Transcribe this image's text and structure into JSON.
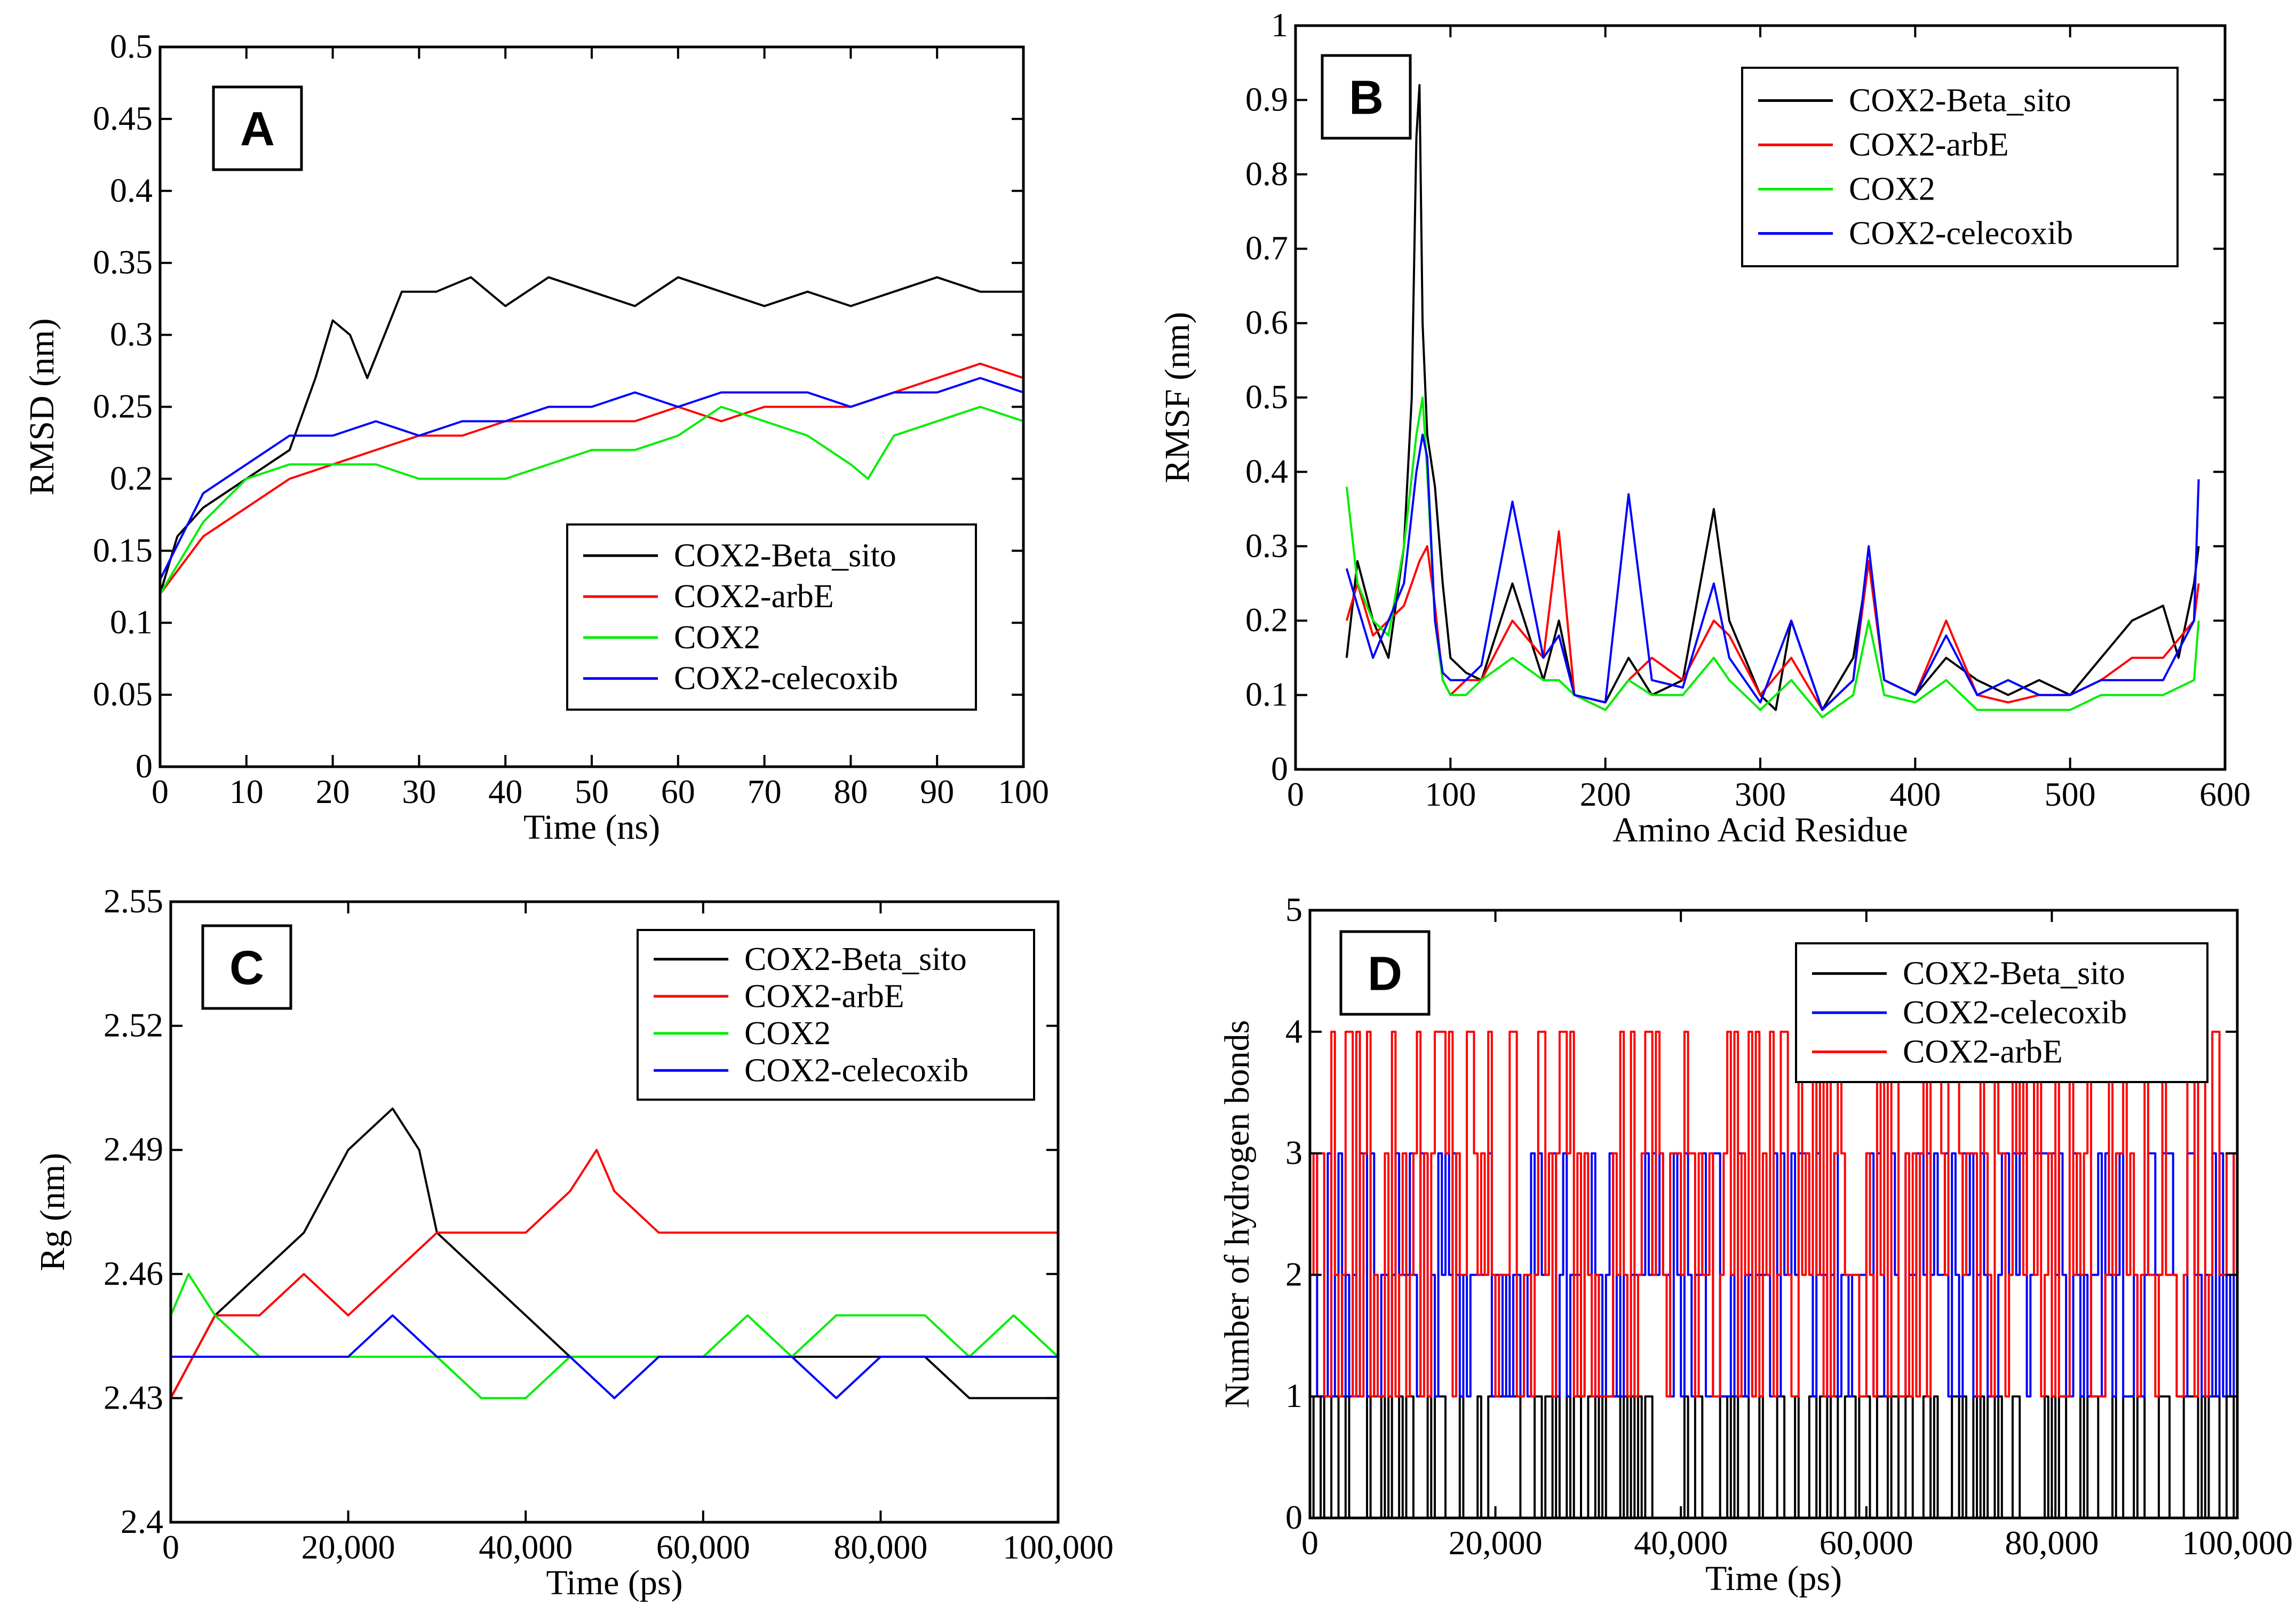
{
  "chart_data": [
    {
      "type": "line",
      "panel_letter": "A",
      "xlabel": "Time (ns)",
      "ylabel": "RMSD (nm)",
      "xlim": [
        0,
        100
      ],
      "ylim": [
        0,
        0.5
      ],
      "x_ticks": [
        "0",
        "10",
        "20",
        "30",
        "40",
        "50",
        "60",
        "70",
        "80",
        "90",
        "100"
      ],
      "y_ticks": [
        "0",
        "0.05",
        "0.1",
        "0.15",
        "0.2",
        "0.25",
        "0.3",
        "0.35",
        "0.4",
        "0.45",
        "0.5"
      ],
      "legend_position": "lower-right",
      "series": [
        {
          "name": "COX2-Beta_sito",
          "color": "#000000",
          "x": [
            0,
            2,
            5,
            10,
            15,
            18,
            20,
            22,
            24,
            26,
            28,
            32,
            36,
            40,
            45,
            50,
            55,
            60,
            65,
            70,
            75,
            80,
            85,
            90,
            95,
            100
          ],
          "values": [
            0.12,
            0.16,
            0.18,
            0.2,
            0.22,
            0.27,
            0.31,
            0.3,
            0.27,
            0.3,
            0.33,
            0.33,
            0.34,
            0.32,
            0.34,
            0.33,
            0.32,
            0.34,
            0.33,
            0.32,
            0.33,
            0.32,
            0.33,
            0.34,
            0.33,
            0.33
          ]
        },
        {
          "name": "COX2-arbE",
          "color": "#ff0000",
          "x": [
            0,
            5,
            10,
            15,
            20,
            25,
            30,
            35,
            40,
            45,
            50,
            55,
            60,
            65,
            70,
            75,
            80,
            85,
            90,
            95,
            100
          ],
          "values": [
            0.12,
            0.16,
            0.18,
            0.2,
            0.21,
            0.22,
            0.23,
            0.23,
            0.24,
            0.24,
            0.24,
            0.24,
            0.25,
            0.24,
            0.25,
            0.25,
            0.25,
            0.26,
            0.27,
            0.28,
            0.27
          ]
        },
        {
          "name": "COX2",
          "color": "#00ee00",
          "x": [
            0,
            5,
            10,
            15,
            20,
            25,
            30,
            35,
            40,
            45,
            50,
            55,
            60,
            65,
            70,
            75,
            80,
            82,
            85,
            90,
            95,
            100
          ],
          "values": [
            0.12,
            0.17,
            0.2,
            0.21,
            0.21,
            0.21,
            0.2,
            0.2,
            0.2,
            0.21,
            0.22,
            0.22,
            0.23,
            0.25,
            0.24,
            0.23,
            0.21,
            0.2,
            0.23,
            0.24,
            0.25,
            0.24
          ]
        },
        {
          "name": "COX2-celecoxib",
          "color": "#0000ff",
          "x": [
            0,
            5,
            10,
            15,
            20,
            25,
            30,
            35,
            40,
            45,
            50,
            55,
            60,
            65,
            70,
            75,
            80,
            85,
            90,
            95,
            100
          ],
          "values": [
            0.13,
            0.19,
            0.21,
            0.23,
            0.23,
            0.24,
            0.23,
            0.24,
            0.24,
            0.25,
            0.25,
            0.26,
            0.25,
            0.26,
            0.26,
            0.26,
            0.25,
            0.26,
            0.26,
            0.27,
            0.26
          ]
        }
      ]
    },
    {
      "type": "line",
      "panel_letter": "B",
      "xlabel": "Amino Acid Residue",
      "ylabel": "RMSF (nm)",
      "xlim": [
        0,
        600
      ],
      "ylim": [
        0,
        1
      ],
      "x_ticks": [
        "0",
        "100",
        "200",
        "300",
        "400",
        "500",
        "600"
      ],
      "y_ticks": [
        "0",
        "0.1",
        "0.2",
        "0.3",
        "0.4",
        "0.5",
        "0.6",
        "0.7",
        "0.8",
        "0.9",
        "1"
      ],
      "legend_position": "top-right",
      "series": [
        {
          "name": "COX2-Beta_sito",
          "color": "#000000",
          "x": [
            33,
            40,
            50,
            60,
            70,
            75,
            78,
            80,
            82,
            85,
            90,
            95,
            100,
            110,
            120,
            140,
            160,
            170,
            180,
            200,
            215,
            230,
            250,
            270,
            280,
            300,
            310,
            320,
            340,
            360,
            370,
            380,
            400,
            420,
            440,
            460,
            480,
            500,
            520,
            540,
            560,
            570,
            580,
            583
          ],
          "values": [
            0.15,
            0.28,
            0.2,
            0.15,
            0.3,
            0.5,
            0.85,
            0.92,
            0.6,
            0.45,
            0.38,
            0.25,
            0.15,
            0.13,
            0.12,
            0.25,
            0.12,
            0.2,
            0.1,
            0.09,
            0.15,
            0.1,
            0.12,
            0.35,
            0.2,
            0.1,
            0.08,
            0.2,
            0.08,
            0.15,
            0.28,
            0.12,
            0.1,
            0.15,
            0.12,
            0.1,
            0.12,
            0.1,
            0.15,
            0.2,
            0.22,
            0.15,
            0.25,
            0.3
          ]
        },
        {
          "name": "COX2-arbE",
          "color": "#ff0000",
          "x": [
            33,
            40,
            50,
            60,
            70,
            80,
            85,
            90,
            95,
            100,
            110,
            120,
            140,
            160,
            170,
            180,
            200,
            215,
            230,
            250,
            270,
            280,
            300,
            320,
            340,
            360,
            370,
            380,
            400,
            420,
            440,
            460,
            480,
            500,
            520,
            540,
            560,
            580,
            583
          ],
          "values": [
            0.2,
            0.25,
            0.18,
            0.2,
            0.22,
            0.28,
            0.3,
            0.22,
            0.12,
            0.1,
            0.12,
            0.12,
            0.2,
            0.15,
            0.32,
            0.1,
            0.08,
            0.12,
            0.15,
            0.12,
            0.2,
            0.18,
            0.1,
            0.15,
            0.08,
            0.12,
            0.28,
            0.12,
            0.1,
            0.2,
            0.1,
            0.09,
            0.1,
            0.1,
            0.12,
            0.15,
            0.15,
            0.2,
            0.25
          ]
        },
        {
          "name": "COX2",
          "color": "#00ee00",
          "x": [
            33,
            40,
            50,
            60,
            70,
            78,
            82,
            85,
            90,
            95,
            100,
            110,
            120,
            140,
            160,
            170,
            180,
            200,
            215,
            230,
            250,
            270,
            280,
            300,
            320,
            340,
            360,
            370,
            380,
            400,
            420,
            440,
            460,
            480,
            500,
            520,
            540,
            560,
            580,
            583
          ],
          "values": [
            0.38,
            0.25,
            0.2,
            0.18,
            0.3,
            0.45,
            0.5,
            0.4,
            0.2,
            0.12,
            0.1,
            0.1,
            0.12,
            0.15,
            0.12,
            0.12,
            0.1,
            0.08,
            0.12,
            0.1,
            0.1,
            0.15,
            0.12,
            0.08,
            0.12,
            0.07,
            0.1,
            0.2,
            0.1,
            0.09,
            0.12,
            0.08,
            0.08,
            0.08,
            0.08,
            0.1,
            0.1,
            0.1,
            0.12,
            0.2
          ]
        },
        {
          "name": "COX2-celecoxib",
          "color": "#0000ff",
          "x": [
            33,
            40,
            50,
            60,
            70,
            78,
            82,
            85,
            90,
            95,
            100,
            110,
            120,
            140,
            160,
            170,
            180,
            200,
            215,
            230,
            250,
            270,
            280,
            300,
            320,
            340,
            360,
            370,
            380,
            400,
            420,
            440,
            460,
            480,
            500,
            520,
            540,
            560,
            580,
            583
          ],
          "values": [
            0.27,
            0.22,
            0.15,
            0.2,
            0.25,
            0.4,
            0.45,
            0.42,
            0.2,
            0.13,
            0.12,
            0.12,
            0.14,
            0.36,
            0.15,
            0.18,
            0.1,
            0.09,
            0.37,
            0.12,
            0.11,
            0.25,
            0.15,
            0.09,
            0.2,
            0.08,
            0.12,
            0.3,
            0.12,
            0.1,
            0.18,
            0.1,
            0.12,
            0.1,
            0.1,
            0.12,
            0.12,
            0.12,
            0.2,
            0.39
          ]
        }
      ]
    },
    {
      "type": "line",
      "panel_letter": "C",
      "xlabel": "Time (ps)",
      "ylabel": "Rg (nm)",
      "xlim": [
        0,
        100000
      ],
      "ylim": [
        2.4,
        2.55
      ],
      "x_ticks": [
        "0",
        "20,000",
        "40,000",
        "60,000",
        "80,000",
        "100,000"
      ],
      "y_ticks": [
        "2.4",
        "2.43",
        "2.46",
        "2.49",
        "2.52",
        "2.55"
      ],
      "legend_position": "top-right",
      "series": [
        {
          "name": "COX2-Beta_sito",
          "color": "#000000",
          "x": [
            0,
            5000,
            10000,
            15000,
            20000,
            25000,
            28000,
            30000,
            35000,
            40000,
            45000,
            50000,
            55000,
            60000,
            65000,
            70000,
            75000,
            80000,
            85000,
            90000,
            95000,
            100000
          ],
          "values": [
            2.43,
            2.45,
            2.46,
            2.47,
            2.49,
            2.5,
            2.49,
            2.47,
            2.46,
            2.45,
            2.44,
            2.44,
            2.44,
            2.44,
            2.44,
            2.44,
            2.44,
            2.44,
            2.44,
            2.43,
            2.43,
            2.43
          ]
        },
        {
          "name": "COX2-arbE",
          "color": "#ff0000",
          "x": [
            0,
            5000,
            10000,
            15000,
            20000,
            25000,
            30000,
            35000,
            40000,
            45000,
            48000,
            50000,
            55000,
            60000,
            65000,
            70000,
            75000,
            80000,
            85000,
            90000,
            95000,
            100000
          ],
          "values": [
            2.43,
            2.45,
            2.45,
            2.46,
            2.45,
            2.46,
            2.47,
            2.47,
            2.47,
            2.48,
            2.49,
            2.48,
            2.47,
            2.47,
            2.47,
            2.47,
            2.47,
            2.47,
            2.47,
            2.47,
            2.47,
            2.47
          ]
        },
        {
          "name": "COX2",
          "color": "#00ee00",
          "x": [
            0,
            2000,
            5000,
            10000,
            15000,
            20000,
            25000,
            30000,
            35000,
            40000,
            45000,
            50000,
            55000,
            60000,
            65000,
            70000,
            75000,
            80000,
            85000,
            90000,
            95000,
            100000
          ],
          "values": [
            2.45,
            2.46,
            2.45,
            2.44,
            2.44,
            2.44,
            2.44,
            2.44,
            2.43,
            2.43,
            2.44,
            2.44,
            2.44,
            2.44,
            2.45,
            2.44,
            2.45,
            2.45,
            2.45,
            2.44,
            2.45,
            2.44
          ]
        },
        {
          "name": "COX2-celecoxib",
          "color": "#0000ff",
          "x": [
            0,
            5000,
            10000,
            15000,
            20000,
            25000,
            30000,
            35000,
            40000,
            45000,
            50000,
            55000,
            60000,
            65000,
            70000,
            75000,
            80000,
            85000,
            90000,
            95000,
            100000
          ],
          "values": [
            2.44,
            2.44,
            2.44,
            2.44,
            2.44,
            2.45,
            2.44,
            2.44,
            2.44,
            2.44,
            2.43,
            2.44,
            2.44,
            2.44,
            2.44,
            2.43,
            2.44,
            2.44,
            2.44,
            2.44,
            2.44
          ]
        }
      ]
    },
    {
      "type": "line",
      "panel_letter": "D",
      "xlabel": "Time (ps)",
      "ylabel": "Number of hydrogen bonds",
      "xlim": [
        0,
        100000
      ],
      "ylim": [
        0,
        5
      ],
      "x_ticks": [
        "0",
        "20,000",
        "40,000",
        "60,000",
        "80,000",
        "100,000"
      ],
      "y_ticks": [
        "0",
        "1",
        "2",
        "3",
        "4",
        "5"
      ],
      "legend_position": "top-right",
      "series": [
        {
          "name": "COX2-Beta_sito",
          "color": "#000000",
          "x": [
            0,
            20000,
            40000,
            60000,
            80000,
            100000
          ],
          "values": [
            1,
            1,
            1,
            1,
            1,
            1
          ]
        },
        {
          "name": "COX2-celecoxib",
          "color": "#0000ff",
          "x": [
            0,
            20000,
            40000,
            60000,
            80000,
            100000
          ],
          "values": [
            2,
            2,
            2,
            2,
            2,
            2
          ]
        },
        {
          "name": "COX2-arbE",
          "color": "#ff0000",
          "x": [
            0,
            20000,
            40000,
            60000,
            80000,
            100000
          ],
          "values": [
            1.5,
            2,
            2,
            2,
            2,
            1.5
          ]
        }
      ]
    }
  ]
}
